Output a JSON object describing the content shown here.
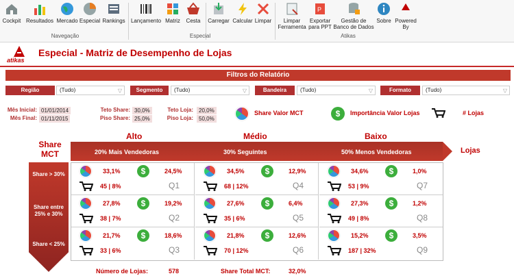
{
  "ribbon": {
    "buttons": [
      {
        "label": "Cockpit",
        "icon": "home-icon"
      },
      {
        "label": "Resultados",
        "icon": "bar-chart-icon"
      },
      {
        "label": "Mercado",
        "icon": "globe-icon"
      },
      {
        "label": "Especial",
        "icon": "pie-chart-icon"
      },
      {
        "label": "Rankings",
        "icon": "ranking-icon"
      },
      {
        "label": "Lançamento",
        "icon": "barcode-icon"
      },
      {
        "label": "Matriz",
        "icon": "matrix-icon"
      },
      {
        "label": "Cesta",
        "icon": "basket-icon"
      },
      {
        "label": "Carregar",
        "icon": "load-icon"
      },
      {
        "label": "Calcular",
        "icon": "lightning-icon"
      },
      {
        "label": "Limpar",
        "icon": "close-icon"
      },
      {
        "label": "Limpar Ferramenta",
        "icon": "clear-sheet-icon"
      },
      {
        "label": "Exportar para PPT",
        "icon": "export-ppt-icon"
      },
      {
        "label": "Gestão de Banco de Dados",
        "icon": "database-lock-icon"
      },
      {
        "label": "Sobre",
        "icon": "info-icon"
      },
      {
        "label": "Powered By",
        "icon": "atikas-logo-icon"
      }
    ],
    "groups": {
      "navegacao": "Navegação",
      "especial": "Especial",
      "atikas": "Atikas"
    },
    "brand_mini": "atikas"
  },
  "header": {
    "title": "Especial - Matriz de Desempenho de Lojas",
    "logo_text": "atikas"
  },
  "filters": {
    "section_title": "Filtros do Relatório",
    "regiao": {
      "label": "Região",
      "value": "(Tudo)"
    },
    "segmento": {
      "label": "Segmento",
      "value": "(Tudo)"
    },
    "bandeira": {
      "label": "Bandeira",
      "value": "(Tudo)"
    },
    "formato": {
      "label": "Formato",
      "value": "(Tudo)"
    }
  },
  "params": {
    "mes_inicial": {
      "label": "Mês Inicial:",
      "value": "01/01/2014"
    },
    "mes_final": {
      "label": "Mês Final:",
      "value": "01/11/2015"
    },
    "teto_share": {
      "label": "Teto Share:",
      "value": "30,0%"
    },
    "piso_share": {
      "label": "Piso Share:",
      "value": "25,0%"
    },
    "teto_loja": {
      "label": "Teto Loja:",
      "value": "20,0%"
    },
    "piso_loja": {
      "label": "Piso Loja:",
      "value": "50,0%"
    }
  },
  "legend": {
    "share": "Share Valor MCT",
    "importancia": "Importância Valor Lojas",
    "lojas": "# Lojas"
  },
  "matrix": {
    "share_label": "Share MCT",
    "lojas_label": "Lojas",
    "columns": [
      {
        "title": "Alto",
        "subtitle": "20% Mais Vendedoras"
      },
      {
        "title": "Médio",
        "subtitle": "30% Seguintes"
      },
      {
        "title": "Baixo",
        "subtitle": "50% Menos Vendedoras"
      }
    ],
    "rows": [
      "Share > 30%",
      "Share entre 25% e 30%",
      "Share < 25%"
    ],
    "cells": [
      [
        {
          "share": "33,1%",
          "imp": "24,5%",
          "lojas": "45 | 8%",
          "q": "Q1"
        },
        {
          "share": "34,5%",
          "imp": "12,9%",
          "lojas": "68 | 12%",
          "q": "Q4"
        },
        {
          "share": "34,6%",
          "imp": "1,0%",
          "lojas": "53 | 9%",
          "q": "Q7"
        }
      ],
      [
        {
          "share": "27,8%",
          "imp": "19,2%",
          "lojas": "38 | 7%",
          "q": "Q2"
        },
        {
          "share": "27,6%",
          "imp": "6,4%",
          "lojas": "35 | 6%",
          "q": "Q5"
        },
        {
          "share": "27,3%",
          "imp": "1,2%",
          "lojas": "49 | 8%",
          "q": "Q8"
        }
      ],
      [
        {
          "share": "21,7%",
          "imp": "18,6%",
          "lojas": "33 | 6%",
          "q": "Q3"
        },
        {
          "share": "21,8%",
          "imp": "12,6%",
          "lojas": "70 | 12%",
          "q": "Q6"
        },
        {
          "share": "15,2%",
          "imp": "3,5%",
          "lojas": "187 | 32%",
          "q": "Q9"
        }
      ]
    ]
  },
  "footer": {
    "num_lojas_label": "Número de Lojas:",
    "num_lojas": "578",
    "share_total_label": "Share Total MCT:",
    "share_total": "32,0%"
  },
  "colors": {
    "accent": "#c00000",
    "banner": "#c0392b",
    "coin": "#3cae3c"
  }
}
